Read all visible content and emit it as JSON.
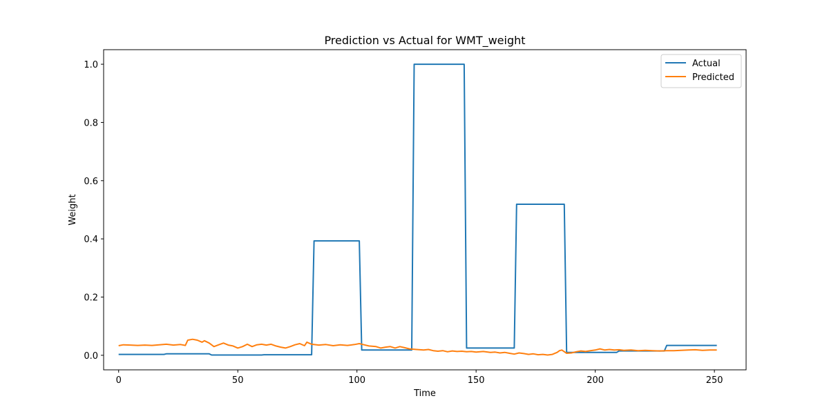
{
  "chart_data": {
    "type": "line",
    "title": "Prediction vs Actual for WMT_weight",
    "xlabel": "Time",
    "ylabel": "Weight",
    "xlim": [
      -6.3,
      263.3
    ],
    "ylim": [
      -0.05,
      1.05
    ],
    "xticks": [
      0,
      50,
      100,
      150,
      200,
      250
    ],
    "xtick_labels": [
      "0",
      "50",
      "100",
      "150",
      "200",
      "250"
    ],
    "yticks": [
      0.0,
      0.2,
      0.4,
      0.6,
      0.8,
      1.0
    ],
    "ytick_labels": [
      "0.0",
      "0.2",
      "0.4",
      "0.6",
      "0.8",
      "1.0"
    ],
    "grid": false,
    "legend_position": "top-right",
    "series": [
      {
        "name": "Actual",
        "color": "#1f77b4",
        "points": [
          [
            0,
            0.003
          ],
          [
            19,
            0.003
          ],
          [
            20,
            0.005
          ],
          [
            38,
            0.005
          ],
          [
            39,
            0.001
          ],
          [
            60,
            0.001
          ],
          [
            61,
            0.002
          ],
          [
            81,
            0.002
          ],
          [
            82,
            0.393
          ],
          [
            101,
            0.393
          ],
          [
            102,
            0.018
          ],
          [
            123,
            0.018
          ],
          [
            124,
            1.0
          ],
          [
            145,
            1.0
          ],
          [
            146,
            0.025
          ],
          [
            166,
            0.025
          ],
          [
            167,
            0.519
          ],
          [
            187,
            0.519
          ],
          [
            188,
            0.01
          ],
          [
            209,
            0.01
          ],
          [
            210,
            0.015
          ],
          [
            229,
            0.015
          ],
          [
            230,
            0.034
          ],
          [
            251,
            0.034
          ]
        ]
      },
      {
        "name": "Predicted",
        "color": "#ff7f0e",
        "points": [
          [
            0,
            0.033
          ],
          [
            2,
            0.036
          ],
          [
            5,
            0.035
          ],
          [
            8,
            0.034
          ],
          [
            11,
            0.035
          ],
          [
            14,
            0.034
          ],
          [
            17,
            0.036
          ],
          [
            20,
            0.038
          ],
          [
            23,
            0.035
          ],
          [
            26,
            0.037
          ],
          [
            28,
            0.034
          ],
          [
            29,
            0.052
          ],
          [
            31,
            0.055
          ],
          [
            33,
            0.052
          ],
          [
            35,
            0.045
          ],
          [
            36,
            0.05
          ],
          [
            38,
            0.042
          ],
          [
            40,
            0.03
          ],
          [
            42,
            0.036
          ],
          [
            44,
            0.042
          ],
          [
            46,
            0.035
          ],
          [
            48,
            0.032
          ],
          [
            50,
            0.025
          ],
          [
            52,
            0.03
          ],
          [
            54,
            0.038
          ],
          [
            56,
            0.03
          ],
          [
            58,
            0.036
          ],
          [
            60,
            0.038
          ],
          [
            62,
            0.035
          ],
          [
            64,
            0.038
          ],
          [
            66,
            0.032
          ],
          [
            68,
            0.028
          ],
          [
            70,
            0.025
          ],
          [
            72,
            0.03
          ],
          [
            74,
            0.036
          ],
          [
            76,
            0.04
          ],
          [
            78,
            0.033
          ],
          [
            79,
            0.045
          ],
          [
            81,
            0.038
          ],
          [
            84,
            0.035
          ],
          [
            87,
            0.037
          ],
          [
            90,
            0.033
          ],
          [
            93,
            0.036
          ],
          [
            96,
            0.034
          ],
          [
            99,
            0.037
          ],
          [
            101,
            0.04
          ],
          [
            103,
            0.036
          ],
          [
            105,
            0.032
          ],
          [
            108,
            0.03
          ],
          [
            110,
            0.025
          ],
          [
            112,
            0.028
          ],
          [
            114,
            0.03
          ],
          [
            116,
            0.025
          ],
          [
            118,
            0.03
          ],
          [
            120,
            0.026
          ],
          [
            122,
            0.022
          ],
          [
            125,
            0.02
          ],
          [
            128,
            0.018
          ],
          [
            130,
            0.02
          ],
          [
            132,
            0.016
          ],
          [
            134,
            0.014
          ],
          [
            136,
            0.016
          ],
          [
            138,
            0.012
          ],
          [
            140,
            0.015
          ],
          [
            142,
            0.013
          ],
          [
            144,
            0.014
          ],
          [
            146,
            0.012
          ],
          [
            148,
            0.013
          ],
          [
            150,
            0.011
          ],
          [
            153,
            0.013
          ],
          [
            156,
            0.01
          ],
          [
            158,
            0.011
          ],
          [
            160,
            0.008
          ],
          [
            162,
            0.01
          ],
          [
            164,
            0.007
          ],
          [
            166,
            0.004
          ],
          [
            168,
            0.008
          ],
          [
            170,
            0.006
          ],
          [
            172,
            0.003
          ],
          [
            174,
            0.005
          ],
          [
            176,
            0.002
          ],
          [
            178,
            0.003
          ],
          [
            180,
            0.001
          ],
          [
            182,
            0.003
          ],
          [
            184,
            0.01
          ],
          [
            185,
            0.016
          ],
          [
            186,
            0.018
          ],
          [
            188,
            0.007
          ],
          [
            190,
            0.008
          ],
          [
            192,
            0.012
          ],
          [
            194,
            0.015
          ],
          [
            196,
            0.013
          ],
          [
            198,
            0.016
          ],
          [
            200,
            0.018
          ],
          [
            202,
            0.022
          ],
          [
            204,
            0.018
          ],
          [
            206,
            0.02
          ],
          [
            208,
            0.018
          ],
          [
            210,
            0.019
          ],
          [
            212,
            0.017
          ],
          [
            215,
            0.018
          ],
          [
            218,
            0.016
          ],
          [
            221,
            0.017
          ],
          [
            224,
            0.016
          ],
          [
            227,
            0.015
          ],
          [
            230,
            0.016
          ],
          [
            233,
            0.016
          ],
          [
            236,
            0.017
          ],
          [
            239,
            0.018
          ],
          [
            242,
            0.019
          ],
          [
            245,
            0.017
          ],
          [
            248,
            0.018
          ],
          [
            251,
            0.018
          ]
        ]
      }
    ]
  }
}
